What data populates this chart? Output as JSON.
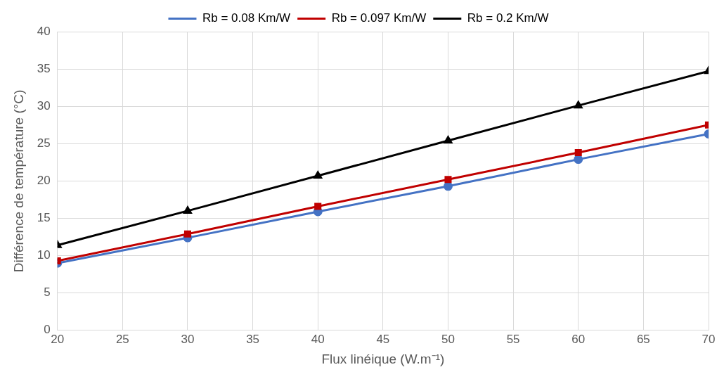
{
  "chart_data": {
    "type": "line",
    "xlabel": "Flux linéique (W.m⁻¹)",
    "ylabel": "Différence de température (°C)",
    "x": [
      20,
      30,
      40,
      50,
      60,
      70
    ],
    "series": [
      {
        "name": "Rb = 0.08 Km/W",
        "color": "#4472c4",
        "marker": "circle",
        "values": [
          9.0,
          12.4,
          15.9,
          19.3,
          22.9,
          26.3
        ]
      },
      {
        "name": "Rb = 0.097 Km/W",
        "color": "#c00000",
        "marker": "square",
        "values": [
          9.3,
          12.9,
          16.6,
          20.2,
          23.8,
          27.5
        ]
      },
      {
        "name": "Rb = 0.2 Km/W",
        "color": "#000000",
        "marker": "triangle",
        "values": [
          11.4,
          16.0,
          20.7,
          25.4,
          30.1,
          34.7
        ]
      }
    ],
    "xlim": [
      20,
      70
    ],
    "xticks": [
      20,
      25,
      30,
      35,
      40,
      45,
      50,
      55,
      60,
      65,
      70
    ],
    "ylim": [
      0,
      40
    ],
    "yticks": [
      0,
      5,
      10,
      15,
      20,
      25,
      30,
      35,
      40
    ],
    "grid": true,
    "legend": "top",
    "line_style": "solid"
  }
}
